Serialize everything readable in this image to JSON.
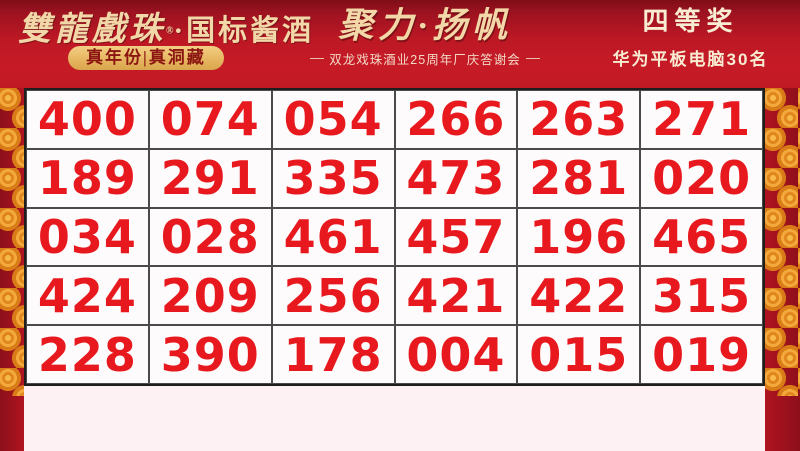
{
  "header": {
    "brand_calligraphy": "雙龍戲珠",
    "brand_reg_mark": "®",
    "brand_suffix": "·国标酱酒",
    "brand_badge": "真年份|真洞藏",
    "slogan": "聚力·扬帆",
    "event_line": "双龙戏珠酒业25周年厂庆答谢会",
    "prize_tier": "四等奖",
    "prize_detail": "华为平板电脑30名"
  },
  "grid": {
    "rows": [
      [
        "400",
        "074",
        "054",
        "266",
        "263",
        "271"
      ],
      [
        "189",
        "291",
        "335",
        "473",
        "281",
        "020"
      ],
      [
        "034",
        "028",
        "461",
        "457",
        "196",
        "465"
      ],
      [
        "424",
        "209",
        "256",
        "421",
        "422",
        "315"
      ],
      [
        "228",
        "390",
        "178",
        "004",
        "015",
        "019"
      ]
    ]
  },
  "colors": {
    "header_red": "#c41a26",
    "dark_red": "#8c0f1a",
    "number_red": "#e8191e",
    "pale_gold_text": "#f2d8a8",
    "pill_gold": "#e9c06a",
    "pill_text": "#8b1510",
    "coin_gold": "#e0861c",
    "coin_gold_light": "#f6b94a",
    "grid_line": "#1e1e1e",
    "bottom_pink": "#fdf1f3"
  }
}
